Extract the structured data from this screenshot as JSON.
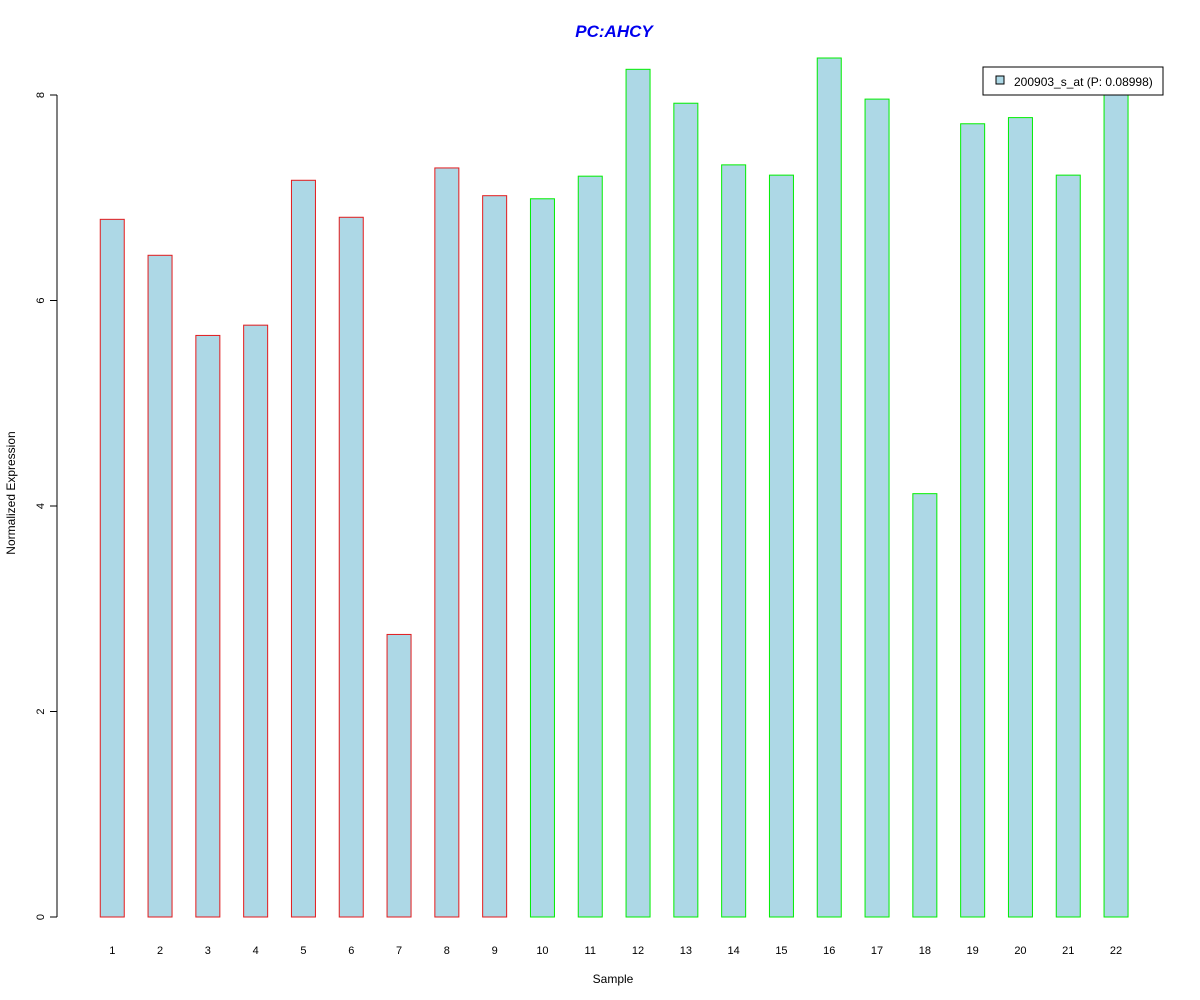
{
  "chart_data": {
    "type": "bar",
    "title": "PC:AHCY",
    "xlabel": "Sample",
    "ylabel": "Normalized Expression",
    "categories": [
      "1",
      "2",
      "3",
      "4",
      "5",
      "6",
      "7",
      "8",
      "9",
      "10",
      "11",
      "12",
      "13",
      "14",
      "15",
      "16",
      "17",
      "18",
      "19",
      "20",
      "21",
      "22"
    ],
    "series": [
      {
        "name": "200903_s_at (P: 0.08998)",
        "values": [
          6.79,
          6.44,
          5.66,
          5.76,
          7.17,
          6.81,
          2.75,
          7.29,
          7.02,
          6.99,
          7.21,
          8.25,
          7.92,
          7.32,
          7.22,
          8.36,
          7.96,
          4.12,
          7.72,
          7.78,
          7.22,
          8.03
        ]
      }
    ],
    "group_border_colors": [
      "#e31a1c",
      "#e31a1c",
      "#e31a1c",
      "#e31a1c",
      "#e31a1c",
      "#e31a1c",
      "#e31a1c",
      "#e31a1c",
      "#e31a1c",
      "#00ee00",
      "#00ee00",
      "#00ee00",
      "#00ee00",
      "#00ee00",
      "#00ee00",
      "#00ee00",
      "#00ee00",
      "#00ee00",
      "#00ee00",
      "#00ee00",
      "#00ee00",
      "#00ee00"
    ],
    "bar_fill_color": "#add8e6",
    "title_color": "#0000ee",
    "y_ticks": [
      0,
      2,
      4,
      6,
      8
    ],
    "ylim": [
      0,
      8.36
    ],
    "grid": false,
    "legend_position": "top-right"
  }
}
